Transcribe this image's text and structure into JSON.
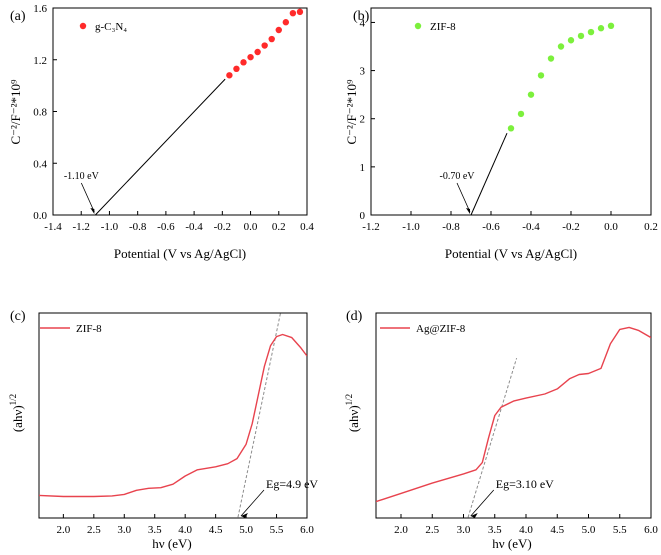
{
  "figure": {
    "colors": {
      "red": "#ff2a2a",
      "green": "#7cf03c",
      "curve": "#e8434e",
      "fit": "#8c8c8c",
      "axis": "#000000"
    }
  },
  "chart_data": [
    {
      "id": "a",
      "type": "scatter",
      "panel_label": "(a)",
      "ylabel": "C⁻²/F⁻²*10⁹",
      "xlabel": "Potential (V vs Ag/AgCl)",
      "xlim": [
        -1.4,
        0.4
      ],
      "ylim": [
        0,
        1.6
      ],
      "xticks": [
        -1.4,
        -1.2,
        -1.0,
        -0.8,
        -0.6,
        -0.4,
        -0.2,
        0.0,
        0.2,
        0.4
      ],
      "xtick_labels": [
        "-1.4",
        "-1.2",
        "-1.0",
        "-0.8",
        "-0.6",
        "-0.4",
        "-0.2",
        "0.0",
        "0.2",
        "0.4"
      ],
      "yticks": [
        0,
        0.4,
        0.8,
        1.2,
        1.6
      ],
      "ytick_labels": [
        "0.0",
        "0.4",
        "0.8",
        "1.2",
        "1.6"
      ],
      "legend": "g-C3N4",
      "legend_display": "g-C₃N₄",
      "marker_color": "#ff2a2a",
      "series": [
        {
          "name": "g-C3N4",
          "x": [
            -0.15,
            -0.1,
            -0.05,
            0.0,
            0.05,
            0.1,
            0.15,
            0.2,
            0.25,
            0.3,
            0.35
          ],
          "y": [
            1.08,
            1.13,
            1.18,
            1.22,
            1.26,
            1.31,
            1.36,
            1.43,
            1.49,
            1.56,
            1.57
          ]
        }
      ],
      "fit_line": {
        "x": [
          -1.1,
          -0.18
        ],
        "y": [
          0,
          1.05
        ]
      },
      "annotation": {
        "text": "-1.10 eV",
        "x": -1.1,
        "y": 0
      }
    },
    {
      "id": "b",
      "type": "scatter",
      "panel_label": "(b)",
      "ylabel": "C⁻²/F⁻²*10⁹",
      "xlabel": "Potential (V vs Ag/AgCl)",
      "xlim": [
        -1.2,
        0.2
      ],
      "ylim": [
        0,
        4.3
      ],
      "xticks": [
        -1.2,
        -1.0,
        -0.8,
        -0.6,
        -0.4,
        -0.2,
        0.0,
        0.2
      ],
      "xtick_labels": [
        "-1.2",
        "-1.0",
        "-0.8",
        "-0.6",
        "-0.4",
        "-0.2",
        "0.0",
        "0.2"
      ],
      "yticks": [
        0,
        1,
        2,
        3,
        4
      ],
      "ytick_labels": [
        "0",
        "1",
        "2",
        "3",
        "4"
      ],
      "legend": "ZIF-8",
      "marker_color": "#7cf03c",
      "series": [
        {
          "name": "ZIF-8",
          "x": [
            -0.5,
            -0.45,
            -0.4,
            -0.35,
            -0.3,
            -0.25,
            -0.2,
            -0.15,
            -0.1,
            -0.05,
            0.0
          ],
          "y": [
            1.8,
            2.1,
            2.5,
            2.9,
            3.25,
            3.5,
            3.63,
            3.72,
            3.8,
            3.88,
            3.93
          ]
        }
      ],
      "fit_line": {
        "x": [
          -0.7,
          -0.52
        ],
        "y": [
          0,
          1.7
        ]
      },
      "annotation": {
        "text": "-0.70 eV",
        "x": -0.7,
        "y": 0
      }
    },
    {
      "id": "c",
      "type": "line",
      "panel_label": "(c)",
      "ylabel": "(ahν)",
      "ylabel_sup": "1/2",
      "xlabel": "hν (eV)",
      "xlim": [
        1.6,
        6.0
      ],
      "ylim": [
        0,
        100
      ],
      "xticks": [
        2.0,
        2.5,
        3.0,
        3.5,
        4.0,
        4.5,
        5.0,
        5.5,
        6.0
      ],
      "xtick_labels": [
        "2.0",
        "2.5",
        "3.0",
        "3.5",
        "4.0",
        "4.5",
        "5.0",
        "5.5",
        "6.0"
      ],
      "legend": "ZIF-8",
      "line_color": "#e8434e",
      "series": [
        {
          "name": "ZIF-8",
          "x": [
            1.6,
            2.0,
            2.5,
            2.8,
            3.0,
            3.2,
            3.4,
            3.6,
            3.8,
            4.0,
            4.2,
            4.5,
            4.7,
            4.85,
            5.0,
            5.1,
            5.2,
            5.3,
            5.4,
            5.5,
            5.6,
            5.75,
            5.9,
            6.0
          ],
          "y": [
            11,
            10.5,
            10.5,
            10.8,
            11.5,
            13.5,
            14.5,
            14.8,
            16.5,
            20.5,
            23.5,
            25,
            26.5,
            29,
            36,
            46,
            60,
            74,
            84,
            88.5,
            89.5,
            88,
            83,
            79
          ]
        }
      ],
      "fit_line": {
        "x": [
          4.85,
          5.6
        ],
        "y": [
          -2,
          105
        ]
      },
      "annotation": {
        "text": "Eg=4.9 eV",
        "x": 4.9,
        "y": 0
      }
    },
    {
      "id": "d",
      "type": "line",
      "panel_label": "(d)",
      "ylabel": "(ahν)",
      "ylabel_sup": "1/2",
      "xlabel": "hν (eV)",
      "xlim": [
        1.6,
        6.0
      ],
      "ylim": [
        0,
        100
      ],
      "xticks": [
        2.0,
        2.5,
        3.0,
        3.5,
        4.0,
        4.5,
        5.0,
        5.5,
        6.0
      ],
      "xtick_labels": [
        "2.0",
        "2.5",
        "3.0",
        "3.5",
        "4.0",
        "4.5",
        "5.0",
        "5.5",
        "6.0"
      ],
      "legend": "Ag@ZIF-8",
      "line_color": "#e8434e",
      "series": [
        {
          "name": "Ag@ZIF-8",
          "x": [
            1.6,
            2.0,
            2.5,
            3.0,
            3.2,
            3.3,
            3.4,
            3.5,
            3.6,
            3.8,
            4.0,
            4.3,
            4.5,
            4.7,
            4.85,
            5.0,
            5.2,
            5.35,
            5.5,
            5.65,
            5.8,
            6.0
          ],
          "y": [
            8,
            12,
            17,
            21.5,
            23.5,
            27,
            39,
            50,
            54,
            57,
            58.5,
            60.5,
            63,
            68,
            70,
            70.5,
            73,
            85,
            92,
            93,
            91.5,
            88
          ]
        }
      ],
      "fit_line": {
        "x": [
          3.05,
          3.85
        ],
        "y": [
          -2,
          78
        ]
      },
      "annotation": {
        "text": "Eg=3.10 eV",
        "x": 3.1,
        "y": 0
      }
    }
  ]
}
